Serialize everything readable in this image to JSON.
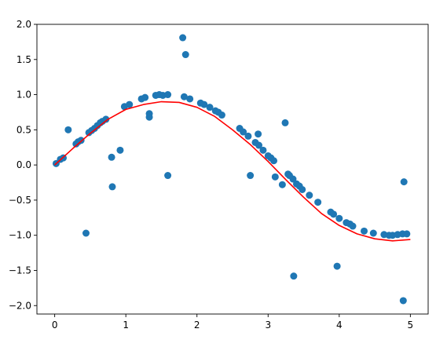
{
  "chart_data": {
    "type": "scatter",
    "title": "",
    "xlabel": "",
    "ylabel": "",
    "xlim": [
      -0.25,
      5.25
    ],
    "ylim": [
      -2.12,
      2.0
    ],
    "grid": false,
    "x_ticks": [
      0,
      1,
      2,
      3,
      4,
      5
    ],
    "x_tick_labels": [
      "0",
      "1",
      "2",
      "3",
      "4",
      "5"
    ],
    "y_ticks": [
      2.0,
      1.5,
      1.0,
      0.5,
      0.0,
      -0.5,
      -1.0,
      -1.5,
      -2.0
    ],
    "y_tick_labels": [
      "2.0",
      "1.5",
      "1.0",
      "0.5",
      "0.0",
      "−0.5",
      "−1.0",
      "−1.5",
      "−2.0"
    ],
    "series": [
      {
        "type": "scatter",
        "color": "#1f77b4",
        "points": [
          [
            0.02,
            0.02
          ],
          [
            0.08,
            0.08
          ],
          [
            0.12,
            0.1
          ],
          [
            0.19,
            0.5
          ],
          [
            0.3,
            0.3
          ],
          [
            0.33,
            0.33
          ],
          [
            0.37,
            0.35
          ],
          [
            0.44,
            -0.97
          ],
          [
            0.48,
            0.46
          ],
          [
            0.52,
            0.49
          ],
          [
            0.56,
            0.52
          ],
          [
            0.6,
            0.56
          ],
          [
            0.64,
            0.6
          ],
          [
            0.67,
            0.62
          ],
          [
            0.72,
            0.65
          ],
          [
            0.8,
            0.11
          ],
          [
            0.81,
            -0.31
          ],
          [
            0.92,
            0.21
          ],
          [
            0.98,
            0.83
          ],
          [
            1.05,
            0.86
          ],
          [
            1.22,
            0.94
          ],
          [
            1.27,
            0.96
          ],
          [
            1.33,
            0.73
          ],
          [
            1.33,
            0.68
          ],
          [
            1.42,
            0.99
          ],
          [
            1.47,
            1.0
          ],
          [
            1.52,
            0.99
          ],
          [
            1.59,
            1.0
          ],
          [
            1.59,
            -0.15
          ],
          [
            1.8,
            1.81
          ],
          [
            1.82,
            0.97
          ],
          [
            1.84,
            1.57
          ],
          [
            1.9,
            0.94
          ],
          [
            2.05,
            0.88
          ],
          [
            2.1,
            0.86
          ],
          [
            2.18,
            0.82
          ],
          [
            2.26,
            0.77
          ],
          [
            2.3,
            0.75
          ],
          [
            2.35,
            0.71
          ],
          [
            2.6,
            0.52
          ],
          [
            2.65,
            0.47
          ],
          [
            2.72,
            0.41
          ],
          [
            2.75,
            -0.15
          ],
          [
            2.82,
            0.32
          ],
          [
            2.86,
            0.44
          ],
          [
            2.87,
            0.28
          ],
          [
            2.93,
            0.21
          ],
          [
            3.0,
            0.13
          ],
          [
            3.04,
            0.1
          ],
          [
            3.08,
            0.06
          ],
          [
            3.1,
            -0.17
          ],
          [
            3.2,
            -0.28
          ],
          [
            3.24,
            0.6
          ],
          [
            3.28,
            -0.13
          ],
          [
            3.3,
            -0.15
          ],
          [
            3.35,
            -0.2
          ],
          [
            3.36,
            -1.58
          ],
          [
            3.4,
            -0.27
          ],
          [
            3.44,
            -0.3
          ],
          [
            3.48,
            -0.35
          ],
          [
            3.58,
            -0.43
          ],
          [
            3.7,
            -0.53
          ],
          [
            3.88,
            -0.67
          ],
          [
            3.92,
            -0.7
          ],
          [
            3.97,
            -1.44
          ],
          [
            4.0,
            -0.76
          ],
          [
            4.1,
            -0.82
          ],
          [
            4.15,
            -0.84
          ],
          [
            4.19,
            -0.87
          ],
          [
            4.35,
            -0.94
          ],
          [
            4.48,
            -0.97
          ],
          [
            4.63,
            -0.99
          ],
          [
            4.7,
            -1.0
          ],
          [
            4.75,
            -1.0
          ],
          [
            4.82,
            -0.99
          ],
          [
            4.89,
            -0.98
          ],
          [
            4.9,
            -1.93
          ],
          [
            4.91,
            -0.24
          ],
          [
            4.95,
            -0.98
          ]
        ]
      },
      {
        "type": "line",
        "color": "#ff0000",
        "x": [
          0.0,
          0.25,
          0.5,
          0.75,
          1.0,
          1.25,
          1.5,
          1.75,
          2.0,
          2.25,
          2.5,
          2.75,
          3.0,
          3.25,
          3.5,
          3.75,
          4.0,
          4.25,
          4.5,
          4.75,
          5.0
        ],
        "y": [
          0.0,
          0.23,
          0.45,
          0.65,
          0.79,
          0.86,
          0.9,
          0.89,
          0.82,
          0.69,
          0.5,
          0.29,
          0.05,
          -0.21,
          -0.46,
          -0.69,
          -0.86,
          -0.98,
          -1.05,
          -1.08,
          -1.06
        ]
      }
    ]
  }
}
